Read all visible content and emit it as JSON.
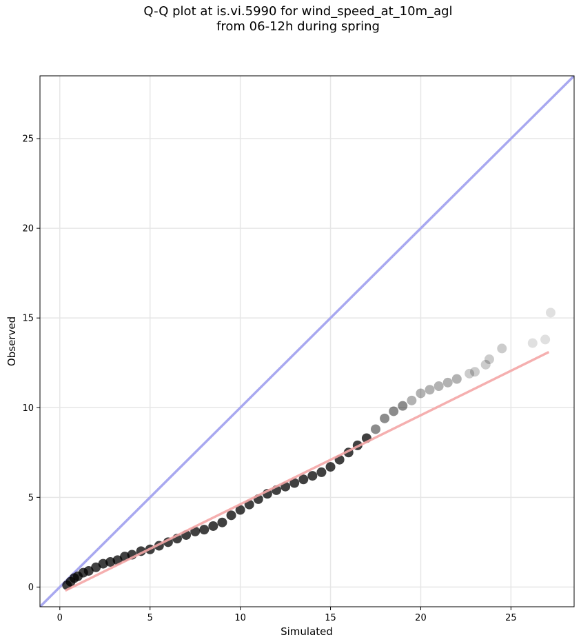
{
  "figure": {
    "title_line1": "Q-Q plot at is.vi.5990 for wind_speed_at_10m_agl",
    "title_line2": "from 06-12h during spring"
  },
  "colors": {
    "identity_line": "#a8a8f0",
    "fit_line": "#f4a6a6",
    "points": "#000000",
    "grid": "#e6e6e6"
  },
  "chart_data": {
    "type": "scatter",
    "title": "Q-Q plot at is.vi.5990 for wind_speed_at_10m_agl\nfrom 06-12h during spring",
    "xlabel": "Simulated",
    "ylabel": "Observed",
    "xlim": [
      -1.1,
      28.5
    ],
    "ylim": [
      -1.1,
      28.5
    ],
    "xticks": [
      0,
      5,
      10,
      15,
      20,
      25
    ],
    "yticks": [
      0,
      5,
      10,
      15,
      20,
      25
    ],
    "xtick_labels": [
      "0",
      "5",
      "10",
      "15",
      "20",
      "25"
    ],
    "ytick_labels": [
      "0",
      "5",
      "10",
      "15",
      "20",
      "25"
    ],
    "grid": true,
    "identity_line": {
      "x": [
        -1.1,
        28.5
      ],
      "y": [
        -1.1,
        28.5
      ]
    },
    "fit_line": {
      "x": [
        0.3,
        27.1
      ],
      "y": [
        -0.2,
        13.1
      ]
    },
    "series": [
      {
        "marker": "circle",
        "x": [
          0.4,
          0.6,
          0.8,
          1.0,
          1.3,
          1.6,
          2.0,
          2.4,
          2.8,
          3.2,
          3.6,
          4.0,
          4.5,
          5.0,
          5.5,
          6.0,
          6.5,
          7.0,
          7.5,
          8.0,
          8.5,
          9.0,
          9.5,
          10.0,
          10.5,
          11.0,
          11.5,
          12.0,
          12.5,
          13.0,
          13.5,
          14.0,
          14.5,
          15.0,
          15.5,
          16.0,
          16.5,
          17.0,
          17.5,
          18.0,
          18.5,
          19.0,
          19.5,
          20.0,
          20.5,
          21.0,
          21.5,
          22.0,
          22.7,
          23.0,
          23.6,
          23.8,
          24.5,
          26.2,
          26.9,
          27.2
        ],
        "y": [
          0.1,
          0.3,
          0.5,
          0.6,
          0.8,
          0.9,
          1.1,
          1.3,
          1.4,
          1.5,
          1.7,
          1.8,
          2.0,
          2.1,
          2.3,
          2.5,
          2.7,
          2.9,
          3.1,
          3.2,
          3.4,
          3.6,
          4.0,
          4.3,
          4.6,
          4.9,
          5.2,
          5.4,
          5.6,
          5.8,
          6.0,
          6.2,
          6.4,
          6.7,
          7.1,
          7.5,
          7.9,
          8.3,
          8.8,
          9.4,
          9.8,
          10.1,
          10.4,
          10.8,
          11.0,
          11.2,
          11.4,
          11.6,
          11.9,
          12.0,
          12.4,
          12.7,
          13.3,
          13.6,
          13.8,
          15.3
        ]
      }
    ]
  }
}
